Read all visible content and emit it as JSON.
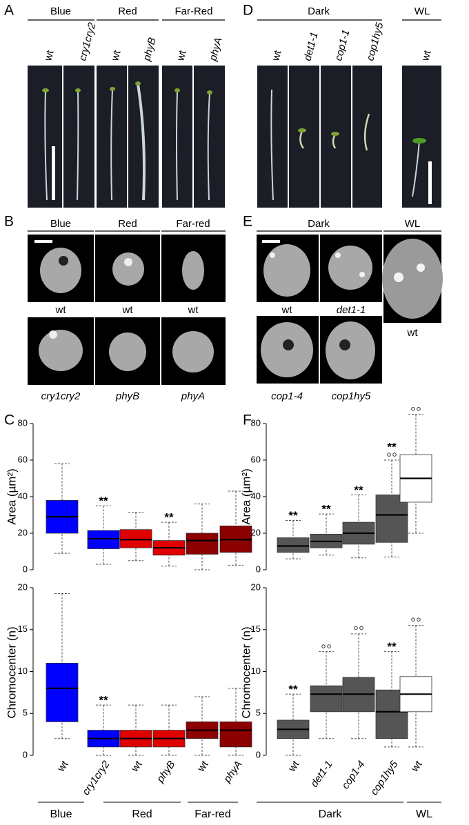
{
  "panel_letters": [
    "A",
    "B",
    "C",
    "D",
    "E",
    "F"
  ],
  "panel_a": {
    "groups": [
      "Blue",
      "Red",
      "Far-Red"
    ],
    "labels": [
      "wt",
      "cry1cry2",
      "wt",
      "phyB",
      "wt",
      "phyA"
    ]
  },
  "panel_d": {
    "groups": [
      "Dark",
      "WL"
    ],
    "labels": [
      "wt",
      "det1-1",
      "cop1-1",
      "cop1hy5",
      "wt"
    ]
  },
  "panel_b": {
    "groups": [
      "Blue",
      "Red",
      "Far-red"
    ],
    "top_labels": [
      "wt",
      "wt",
      "wt"
    ],
    "bottom_labels": [
      "cry1cry2",
      "phyB",
      "phyA"
    ]
  },
  "panel_e": {
    "groups": [
      "Dark",
      "WL"
    ],
    "labels": [
      "wt",
      "det1-1",
      "wt",
      "cop1-4",
      "cop1hy5"
    ]
  },
  "chart_data": [
    {
      "type": "box",
      "ylabel": "Area (µm²)",
      "ylim": [
        0,
        80
      ],
      "yticks": [
        0,
        20,
        40,
        60,
        80
      ],
      "colors": [
        "#0000ff",
        "#0000ff",
        "#e00000",
        "#e00000",
        "#8b0000",
        "#8b0000"
      ],
      "whisker_low": [
        9,
        3,
        5,
        2,
        0,
        2.5
      ],
      "q1": [
        20,
        11.5,
        12,
        8,
        8.5,
        9.5
      ],
      "median": [
        29,
        17,
        16.5,
        12,
        16,
        16.5
      ],
      "q3": [
        38,
        21.5,
        22,
        16,
        20,
        24
      ],
      "whisker_high": [
        58,
        35,
        31.5,
        26,
        36,
        43
      ],
      "annotations": [
        null,
        "**",
        null,
        "**",
        null,
        null
      ],
      "outliers": [
        [],
        [],
        [],
        [],
        [],
        []
      ]
    },
    {
      "type": "box",
      "ylabel": "Chromocenter (n)",
      "ylim": [
        0,
        20
      ],
      "yticks": [
        0,
        5,
        10,
        15,
        20
      ],
      "colors": [
        "#0000ff",
        "#0000ff",
        "#e00000",
        "#e00000",
        "#8b0000",
        "#8b0000"
      ],
      "whisker_low": [
        2,
        0,
        0,
        0,
        0,
        0
      ],
      "q1": [
        4,
        1,
        1,
        1,
        2,
        1
      ],
      "median": [
        8,
        2,
        2,
        2,
        3,
        3
      ],
      "q3": [
        11,
        3,
        3,
        3,
        4,
        4
      ],
      "whisker_high": [
        19.3,
        6,
        6,
        6,
        7,
        8
      ],
      "annotations": [
        null,
        "**",
        null,
        null,
        null,
        null
      ],
      "outliers": [
        [],
        [],
        [],
        [],
        [],
        []
      ],
      "categories": [
        "wt",
        "cry1cry2",
        "wt",
        "phyB",
        "wt",
        "phyA"
      ],
      "italic": [
        false,
        true,
        false,
        true,
        false,
        true
      ],
      "groups": [
        "Blue",
        "Red",
        "Far-red"
      ]
    },
    {
      "type": "box",
      "ylabel": "Area (µm²)",
      "ylim": [
        0,
        80
      ],
      "yticks": [
        0,
        20,
        40,
        60,
        80
      ],
      "colors": [
        "#555555",
        "#555555",
        "#555555",
        "#555555",
        "#ffffff"
      ],
      "whisker_low": [
        6,
        8,
        6.5,
        7,
        20
      ],
      "q1": [
        9.5,
        12,
        14,
        15,
        37
      ],
      "median": [
        13,
        15.5,
        20,
        30,
        50
      ],
      "q3": [
        17.5,
        19.5,
        26,
        41,
        63
      ],
      "whisker_high": [
        27,
        30.5,
        41,
        60,
        85
      ],
      "annotations": [
        "**",
        "**",
        "**",
        "**",
        null
      ],
      "outliers": [
        [],
        [],
        [],
        [
          63,
          63
        ],
        [
          88,
          88
        ]
      ]
    },
    {
      "type": "box",
      "ylabel": "Chromocenter (n)",
      "ylim": [
        0,
        20
      ],
      "yticks": [
        0,
        5,
        10,
        15,
        20
      ],
      "colors": [
        "#555555",
        "#555555",
        "#555555",
        "#555555",
        "#ffffff"
      ],
      "whisker_low": [
        0,
        2,
        2,
        1,
        1
      ],
      "q1": [
        2,
        5.2,
        5.2,
        2,
        5.2
      ],
      "median": [
        3.1,
        7.3,
        7.3,
        5.2,
        7.3
      ],
      "q3": [
        4.2,
        8.3,
        9.3,
        7.8,
        9.4
      ],
      "whisker_high": [
        7.3,
        12.4,
        14.5,
        12.4,
        15.5
      ],
      "annotations": [
        "**",
        null,
        null,
        "**",
        null
      ],
      "outliers": [
        [],
        [
          13,
          13
        ],
        [
          15.2,
          15.2
        ],
        [],
        [
          16.2,
          16.2
        ]
      ],
      "categories": [
        "wt",
        "det1-1",
        "cop1-4",
        "cop1hy5",
        "wt"
      ],
      "italic": [
        false,
        true,
        true,
        true,
        false
      ],
      "groups": [
        "Dark",
        "WL"
      ]
    }
  ]
}
